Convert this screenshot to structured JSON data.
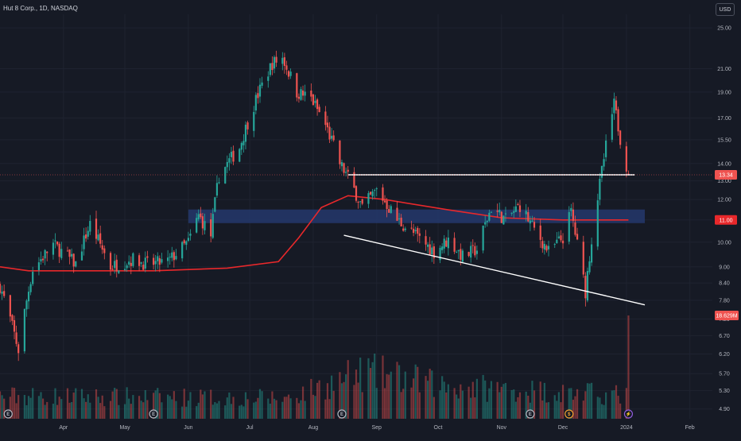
{
  "header": {
    "symbol_title": "Hut 8 Corp., 1D, NASDAQ",
    "currency": "USD"
  },
  "colors": {
    "background": "#161a25",
    "up": "#26a69a",
    "down": "#ef5350",
    "ma": "#e8282b",
    "zone": "#24386c",
    "trendline": "#ffffff",
    "grid": "#1f2330",
    "text": "#b2b5be"
  },
  "chart_data": {
    "type": "candlestick",
    "title": "Hut 8 Corp., 1D, NASDAQ",
    "y_axis": {
      "scale": "log",
      "range": [
        4.7,
        26.5
      ],
      "ticks": [
        "25.00",
        "21.00",
        "19.00",
        "17.00",
        "15.50",
        "14.00",
        "13.00",
        "12.00",
        "11.00",
        "10.00",
        "9.00",
        "8.40",
        "7.80",
        "7.20",
        "6.70",
        "6.20",
        "5.70",
        "5.30",
        "4.90"
      ]
    },
    "x_axis": {
      "range": [
        "2023-03-01",
        "2024-02-12"
      ],
      "ticks": [
        {
          "label": "Apr",
          "date": "2023-04-01"
        },
        {
          "label": "May",
          "date": "2023-05-01"
        },
        {
          "label": "Jun",
          "date": "2023-06-01"
        },
        {
          "label": "Jul",
          "date": "2023-07-01"
        },
        {
          "label": "Aug",
          "date": "2023-08-01"
        },
        {
          "label": "Sep",
          "date": "2023-09-01"
        },
        {
          "label": "Oct",
          "date": "2023-10-01"
        },
        {
          "label": "Nov",
          "date": "2023-11-01"
        },
        {
          "label": "Dec",
          "date": "2023-12-01"
        },
        {
          "label": "2024",
          "date": "2024-01-01"
        },
        {
          "label": "Feb",
          "date": "2024-02-01"
        }
      ]
    },
    "price_path": [
      [
        "2023-03-01",
        8.3
      ],
      [
        "2023-03-10",
        6.3
      ],
      [
        "2023-03-17",
        8.9
      ],
      [
        "2023-03-27",
        9.9
      ],
      [
        "2023-04-07",
        9.1
      ],
      [
        "2023-04-14",
        10.8
      ],
      [
        "2023-04-24",
        9.0
      ],
      [
        "2023-05-05",
        9.3
      ],
      [
        "2023-05-12",
        9.1
      ],
      [
        "2023-05-22",
        9.2
      ],
      [
        "2023-06-01",
        10.0
      ],
      [
        "2023-06-06",
        11.2
      ],
      [
        "2023-06-12",
        10.3
      ],
      [
        "2023-06-16",
        13.3
      ],
      [
        "2023-06-26",
        15.0
      ],
      [
        "2023-07-05",
        18.8
      ],
      [
        "2023-07-12",
        21.5
      ],
      [
        "2023-07-17",
        22.0
      ],
      [
        "2023-07-24",
        19.0
      ],
      [
        "2023-07-31",
        18.5
      ],
      [
        "2023-08-07",
        16.5
      ],
      [
        "2023-08-14",
        14.0
      ],
      [
        "2023-08-18",
        13.2
      ],
      [
        "2023-08-25",
        11.6
      ],
      [
        "2023-09-01",
        12.5
      ],
      [
        "2023-09-11",
        11.0
      ],
      [
        "2023-09-20",
        10.3
      ],
      [
        "2023-09-29",
        9.6
      ],
      [
        "2023-10-06",
        10.1
      ],
      [
        "2023-10-13",
        9.4
      ],
      [
        "2023-10-20",
        9.7
      ],
      [
        "2023-10-27",
        11.6
      ],
      [
        "2023-11-03",
        11.0
      ],
      [
        "2023-11-10",
        11.7
      ],
      [
        "2023-11-16",
        10.7
      ],
      [
        "2023-11-24",
        9.6
      ],
      [
        "2023-12-01",
        10.2
      ],
      [
        "2023-12-05",
        11.4
      ],
      [
        "2023-12-08",
        9.9
      ],
      [
        "2023-12-12",
        8.1
      ],
      [
        "2023-12-19",
        12.8
      ],
      [
        "2023-12-26",
        18.0
      ],
      [
        "2023-12-29",
        15.6
      ],
      [
        "2024-01-02",
        13.34
      ]
    ],
    "moving_average": [
      [
        "2023-03-01",
        9.0
      ],
      [
        "2023-03-15",
        8.85
      ],
      [
        "2023-05-15",
        8.85
      ],
      [
        "2023-06-20",
        8.95
      ],
      [
        "2023-07-15",
        9.2
      ],
      [
        "2023-07-25",
        10.2
      ],
      [
        "2023-08-05",
        11.6
      ],
      [
        "2023-08-18",
        12.2
      ],
      [
        "2023-09-05",
        12.0
      ],
      [
        "2023-10-05",
        11.5
      ],
      [
        "2023-11-01",
        11.1
      ],
      [
        "2023-12-01",
        11.0
      ],
      [
        "2024-01-02",
        11.0
      ]
    ],
    "price_badges": [
      {
        "label": "13.34",
        "value": 13.34,
        "color": "#ef5350"
      },
      {
        "label": "11.00",
        "value": 11.0,
        "color": "#e8282b"
      }
    ],
    "volume_badge": {
      "label": "18.629M",
      "color": "#ef5350"
    },
    "annotations": {
      "resistance_line": {
        "from": [
          "2023-08-18",
          13.34
        ],
        "to": [
          "2024-01-05",
          13.34
        ]
      },
      "support_trendline": {
        "from": [
          "2023-08-16",
          10.3
        ],
        "to": [
          "2024-01-10",
          7.65
        ]
      },
      "demand_zone": {
        "start": "2023-06-01",
        "end": "2024-01-10",
        "low": 10.85,
        "high": 11.5
      }
    },
    "events": [
      {
        "date": "2023-03-05",
        "symbol": "E"
      },
      {
        "date": "2023-05-15",
        "symbol": "E"
      },
      {
        "date": "2023-08-15",
        "symbol": "E"
      },
      {
        "date": "2023-11-15",
        "symbol": "E"
      },
      {
        "date": "2023-12-04",
        "symbol": "$"
      },
      {
        "date": "2024-01-02",
        "symbol": "⚡"
      }
    ],
    "volume": {
      "scale_max": 18.629,
      "base_levels": [
        [
          0,
          0.22
        ],
        [
          100,
          0.2
        ],
        [
          128,
          0.45
        ],
        [
          155,
          0.32
        ],
        [
          200,
          0.25
        ],
        [
          260,
          0.18
        ],
        [
          272,
          0.55
        ],
        [
          285,
          0.4
        ],
        [
          295,
          0.6
        ],
        [
          305,
          0.45
        ],
        [
          310,
          0.78
        ],
        [
          313,
          1.0
        ]
      ]
    }
  }
}
